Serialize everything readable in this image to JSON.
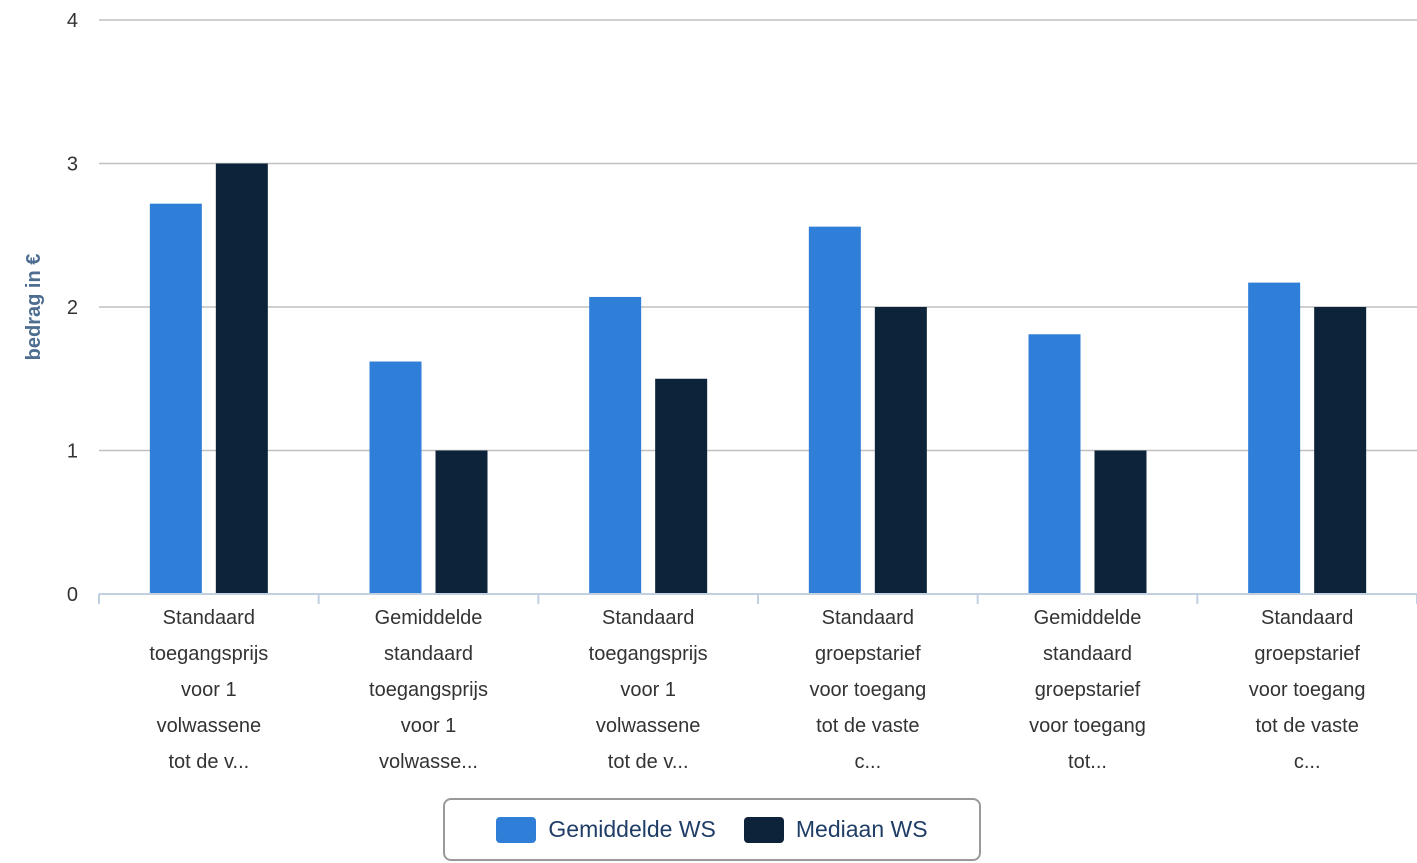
{
  "chart_data": {
    "type": "bar",
    "ylabel": "bedrag in €",
    "ylim": [
      0,
      4
    ],
    "yticks": [
      0,
      1,
      2,
      3,
      4
    ],
    "grid": true,
    "legend_position": "bottom-center",
    "categories": [
      [
        "Standaard",
        "toegangsprijs",
        "voor 1",
        "volwassene",
        "tot de v..."
      ],
      [
        "Gemiddelde",
        "standaard",
        "toegangsprijs",
        "voor 1",
        "volwasse..."
      ],
      [
        "Standaard",
        "toegangsprijs",
        "voor 1",
        "volwassene",
        "tot de v..."
      ],
      [
        "Standaard",
        "groepstarief",
        "voor toegang",
        "tot de vaste",
        "c..."
      ],
      [
        "Gemiddelde",
        "standaard",
        "groepstarief",
        "voor toegang",
        "tot..."
      ],
      [
        "Standaard",
        "groepstarief",
        "voor toegang",
        "tot de vaste",
        "c..."
      ]
    ],
    "series": [
      {
        "name": "Gemiddelde WS",
        "color": "#2f7ed8",
        "values": [
          2.72,
          1.62,
          2.07,
          2.56,
          1.81,
          2.17
        ]
      },
      {
        "name": "Mediaan WS",
        "color": "#0d233a",
        "values": [
          3.0,
          1.0,
          1.5,
          2.0,
          1.0,
          2.0
        ]
      }
    ]
  }
}
